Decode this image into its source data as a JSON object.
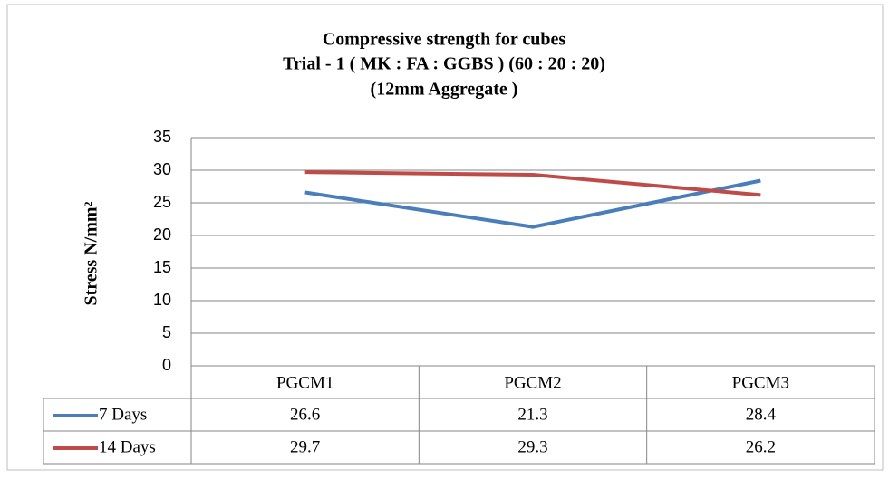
{
  "chart_data": {
    "type": "line",
    "title": [
      "Compressive strength for cubes",
      "Trial - 1 ( MK : FA : GGBS ) (60 : 20 : 20)",
      "(12mm Aggregate )"
    ],
    "y_label": "Stress N/mm²",
    "categories": [
      "PGCM1",
      "PGCM2",
      "PGCM3"
    ],
    "series": [
      {
        "name": "7 Days",
        "color": "#4a7ebb",
        "values": [
          26.6,
          21.3,
          28.4
        ]
      },
      {
        "name": "14 Days",
        "color": "#be4b48",
        "values": [
          29.7,
          29.3,
          26.2
        ]
      }
    ],
    "ylim": [
      0,
      35
    ],
    "yticks": [
      0,
      5,
      10,
      15,
      20,
      25,
      30,
      35
    ],
    "grid": true,
    "data_table": true
  }
}
